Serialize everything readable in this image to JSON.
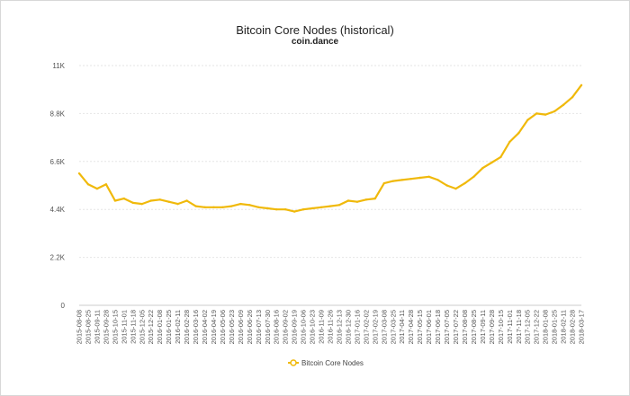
{
  "chart_data": {
    "type": "line",
    "title": "Bitcoin Core Nodes (historical)",
    "subtitle": "coin.dance",
    "ylim": [
      0,
      11000
    ],
    "y_ticks": [
      "0",
      "2.2K",
      "4.4K",
      "6.6K",
      "8.8K",
      "11K"
    ],
    "y_tick_values": [
      0,
      2200,
      4400,
      6600,
      8800,
      11000
    ],
    "x_ticks": [
      "2015-08-08",
      "2015-08-25",
      "2015-09-11",
      "2015-09-28",
      "2015-10-15",
      "2015-11-01",
      "2015-11-18",
      "2015-12-05",
      "2015-12-22",
      "2016-01-08",
      "2016-01-25",
      "2016-02-11",
      "2016-02-28",
      "2016-03-16",
      "2016-04-02",
      "2016-04-19",
      "2016-05-06",
      "2016-05-23",
      "2016-06-09",
      "2016-06-26",
      "2016-07-13",
      "2016-07-30",
      "2016-08-16",
      "2016-09-02",
      "2016-09-19",
      "2016-10-06",
      "2016-10-23",
      "2016-11-09",
      "2016-11-26",
      "2016-12-13",
      "2016-12-30",
      "2017-01-16",
      "2017-02-02",
      "2017-02-19",
      "2017-03-08",
      "2017-03-25",
      "2017-04-11",
      "2017-04-28",
      "2017-05-15",
      "2017-06-01",
      "2017-06-18",
      "2017-07-05",
      "2017-07-22",
      "2017-08-08",
      "2017-08-25",
      "2017-09-11",
      "2017-09-28",
      "2017-10-15",
      "2017-11-01",
      "2017-11-18",
      "2017-12-05",
      "2017-12-22",
      "2018-01-08",
      "2018-01-25",
      "2018-02-11",
      "2018-02-28",
      "2018-03-17"
    ],
    "grid": true,
    "legend_position": "bottom",
    "series": [
      {
        "name": "Bitcoin Core Nodes",
        "color": "#f0b90b",
        "x": [
          "2015-08-08",
          "2015-08-25",
          "2015-09-11",
          "2015-09-28",
          "2015-10-15",
          "2015-11-01",
          "2015-11-18",
          "2015-12-05",
          "2015-12-22",
          "2016-01-08",
          "2016-01-25",
          "2016-02-11",
          "2016-02-28",
          "2016-03-16",
          "2016-04-02",
          "2016-04-19",
          "2016-05-06",
          "2016-05-23",
          "2016-06-09",
          "2016-06-26",
          "2016-07-13",
          "2016-07-30",
          "2016-08-16",
          "2016-09-02",
          "2016-09-19",
          "2016-10-06",
          "2016-10-23",
          "2016-11-09",
          "2016-11-26",
          "2016-12-13",
          "2016-12-30",
          "2017-01-16",
          "2017-02-02",
          "2017-02-19",
          "2017-03-08",
          "2017-03-25",
          "2017-04-11",
          "2017-04-28",
          "2017-05-15",
          "2017-06-01",
          "2017-06-18",
          "2017-07-05",
          "2017-07-22",
          "2017-08-08",
          "2017-08-25",
          "2017-09-11",
          "2017-09-28",
          "2017-10-15",
          "2017-11-01",
          "2017-11-18",
          "2017-12-05",
          "2017-12-22",
          "2018-01-08",
          "2018-01-25",
          "2018-02-11",
          "2018-02-28",
          "2018-03-17"
        ],
        "values": [
          6050,
          5550,
          5350,
          5550,
          4800,
          4900,
          4700,
          4650,
          4800,
          4850,
          4750,
          4650,
          4800,
          4550,
          4500,
          4500,
          4500,
          4550,
          4650,
          4600,
          4500,
          4450,
          4400,
          4400,
          4300,
          4400,
          4450,
          4500,
          4550,
          4600,
          4800,
          4750,
          4850,
          4900,
          5600,
          5700,
          5750,
          5800,
          5850,
          5900,
          5750,
          5500,
          5350,
          5600,
          5900,
          6300,
          6550,
          6800,
          7500,
          7900,
          8500,
          8800,
          8750,
          8900,
          9200,
          9550,
          10100
        ]
      }
    ]
  }
}
